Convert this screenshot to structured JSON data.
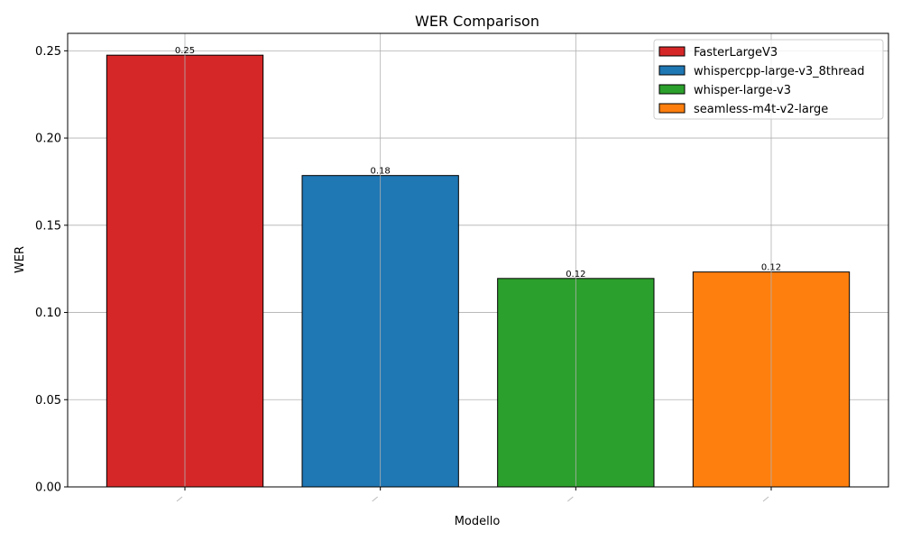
{
  "chart_data": {
    "type": "bar",
    "title": "WER Comparison",
    "xlabel": "Modello",
    "ylabel": "WER",
    "ylim": [
      0,
      0.26
    ],
    "yticks": [
      "0.00",
      "0.05",
      "0.10",
      "0.15",
      "0.20",
      "0.25"
    ],
    "ytick_values": [
      0,
      0.05,
      0.1,
      0.15,
      0.2,
      0.25
    ],
    "grid": true,
    "legend_position": "top-right",
    "bars": [
      {
        "name": "FasterLargeV3",
        "value": 0.2475,
        "label": "0.25",
        "color": "#d62728"
      },
      {
        "name": "whispercpp-large-v3_8thread",
        "value": 0.1785,
        "label": "0.18",
        "color": "#1f77b4"
      },
      {
        "name": "whisper-large-v3",
        "value": 0.1195,
        "label": "0.12",
        "color": "#2ca02c"
      },
      {
        "name": "seamless-m4t-v2-large",
        "value": 0.1232,
        "label": "0.12",
        "color": "#ff7f0e"
      }
    ]
  }
}
